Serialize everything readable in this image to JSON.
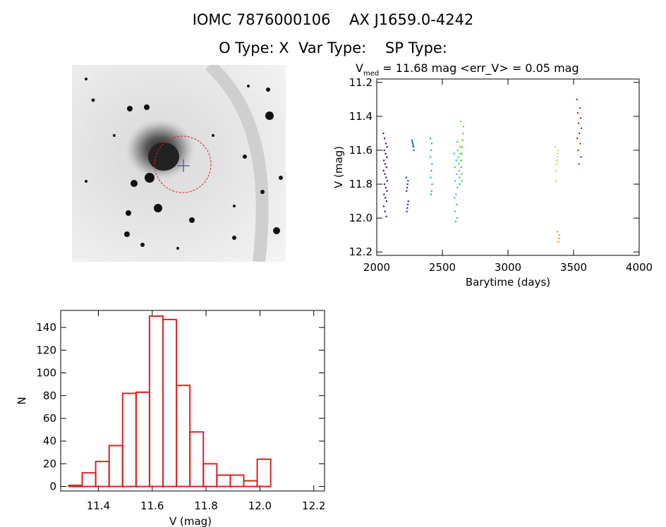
{
  "header": {
    "title_line1": "IOMC 7876000106    AX J1659.0-4242",
    "title_line2": "O Type: X  Var Type:    SP Type:"
  },
  "sky_image": {
    "circle_color": "#dd2222",
    "cross_color": "#2233aa"
  },
  "chart_data": [
    {
      "type": "scatter",
      "title_prefix": "V",
      "title_subscript": "med",
      "title_rest": " = 11.68 mag <err_V> = 0.05 mag",
      "xlabel": "Barytime (days)",
      "ylabel": "V (mag)",
      "xlim": [
        2000,
        4000
      ],
      "ylim": [
        12.22,
        11.18
      ],
      "y_inverted": true,
      "xticks": [
        2000,
        2500,
        3000,
        3500,
        4000
      ],
      "yticks": [
        11.2,
        11.4,
        11.6,
        11.8,
        12.0,
        12.2
      ],
      "series": [
        {
          "color": "#5500aa",
          "x_range": [
            2050,
            2080
          ],
          "y_values": [
            11.5,
            11.53,
            11.56,
            11.58,
            11.6,
            11.62,
            11.64,
            11.66,
            11.68,
            11.7,
            11.72,
            11.74,
            11.76,
            11.78,
            11.8,
            11.82,
            11.84,
            11.86,
            11.88,
            11.9,
            11.93,
            11.96,
            11.99
          ]
        },
        {
          "color": "#2233aa",
          "x_range": [
            2225,
            2240
          ],
          "y_values": [
            11.76,
            11.78,
            11.8,
            11.82,
            11.84,
            11.9,
            11.92,
            11.94,
            11.96
          ]
        },
        {
          "color": "#2266bb",
          "x_range": [
            2268,
            2282
          ],
          "y_values": [
            11.54,
            11.55,
            11.56,
            11.57,
            11.58,
            11.6
          ]
        },
        {
          "color": "#22aacc",
          "x_range": [
            2408,
            2422
          ],
          "y_values": [
            11.53,
            11.56,
            11.6,
            11.64,
            11.68,
            11.72,
            11.76,
            11.8,
            11.84,
            11.86
          ]
        },
        {
          "color": "#11ccbb",
          "x_range": [
            2590,
            2615
          ],
          "y_values": [
            11.62,
            11.66,
            11.7,
            11.74,
            11.78,
            11.82,
            11.86,
            11.88,
            11.92,
            11.96,
            12.0,
            12.02
          ]
        },
        {
          "color": "#33dd44",
          "x_range": [
            2615,
            2650
          ],
          "y_values": [
            11.55,
            11.58,
            11.6,
            11.62,
            11.64,
            11.66,
            11.68,
            11.7,
            11.72,
            11.74,
            11.76,
            11.78,
            11.8
          ]
        },
        {
          "color": "#66dd11",
          "x_range": [
            2640,
            2660
          ],
          "y_values": [
            11.43,
            11.46,
            11.5,
            11.54,
            11.58,
            11.62,
            11.66,
            11.7
          ]
        },
        {
          "color": "#ccdd22",
          "x_range": [
            3360,
            3380
          ],
          "y_values": [
            11.58,
            11.6,
            11.62,
            11.64,
            11.66,
            11.68,
            11.72,
            11.78
          ]
        },
        {
          "color": "#ee9911",
          "x_range": [
            3378,
            3392
          ],
          "y_values": [
            12.08,
            12.1,
            12.12,
            12.14
          ]
        },
        {
          "color": "#cc2211",
          "x_range": [
            3525,
            3560
          ],
          "y_values": [
            11.3,
            11.35,
            11.38,
            11.41,
            11.44,
            11.47,
            11.5,
            11.53,
            11.56,
            11.6,
            11.64,
            11.68
          ]
        }
      ]
    },
    {
      "type": "bar",
      "subtype": "histogram",
      "xlabel": "V (mag)",
      "ylabel": "N",
      "xlim": [
        11.26,
        12.24
      ],
      "ylim": [
        -4,
        155
      ],
      "xticks": [
        11.4,
        11.6,
        11.8,
        12.0,
        12.2
      ],
      "yticks": [
        0,
        20,
        40,
        60,
        80,
        100,
        120,
        140
      ],
      "bin_width": 0.05,
      "bin_starts": [
        11.29,
        11.34,
        11.39,
        11.44,
        11.49,
        11.54,
        11.59,
        11.64,
        11.69,
        11.74,
        11.79,
        11.84,
        11.89,
        11.94,
        11.99,
        12.04,
        12.09
      ],
      "values": [
        1,
        12,
        22,
        36,
        82,
        83,
        150,
        147,
        89,
        48,
        20,
        10,
        10,
        5,
        24,
        0,
        0
      ],
      "bar_color": "#dd2222"
    }
  ]
}
